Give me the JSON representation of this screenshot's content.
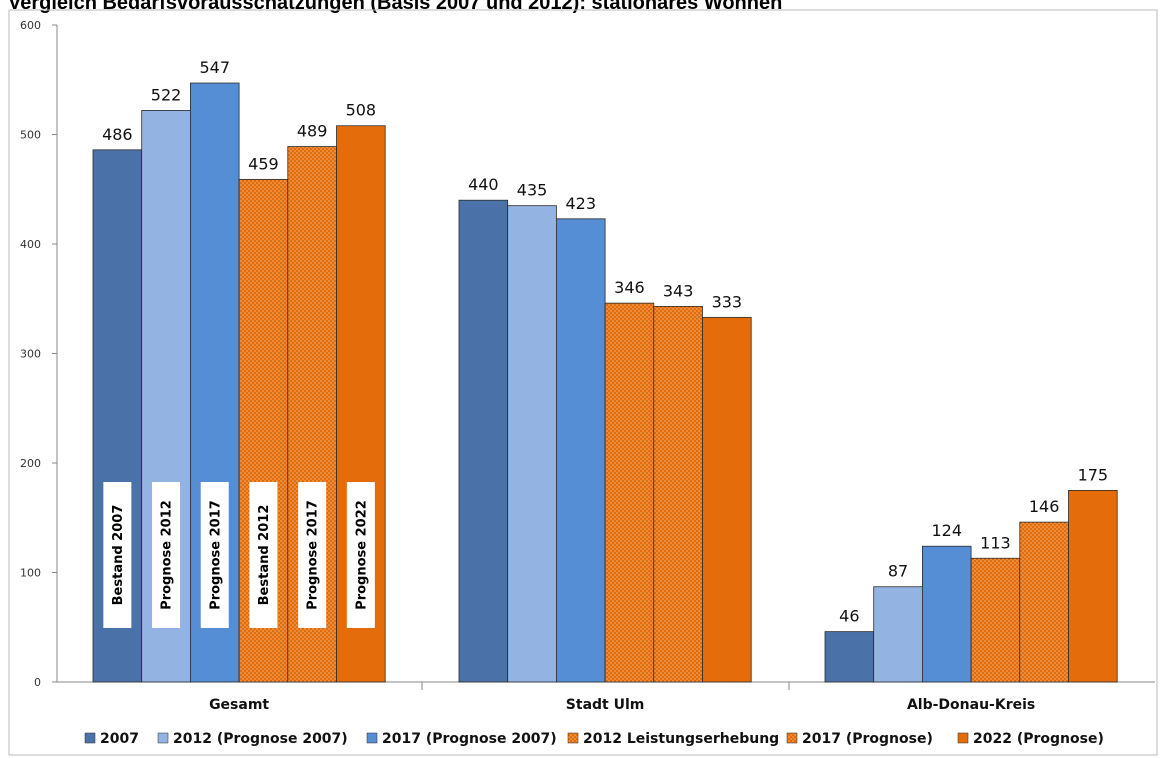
{
  "chart_data": {
    "type": "bar",
    "title": "Vergleich Bedarfsvorausschätzungen (Basis 2007 und 2012): stationäres Wohnen",
    "categories": [
      "Gesamt",
      "Stadt Ulm",
      "Alb-Donau-Kreis"
    ],
    "series": [
      {
        "name": "2007",
        "values": [
          486,
          440,
          46
        ],
        "color": "#4a72a8",
        "pattern": false
      },
      {
        "name": "2012 (Prognose 2007)",
        "values": [
          522,
          435,
          87
        ],
        "color": "#93b4e3",
        "pattern": false
      },
      {
        "name": "2017 (Prognose 2007)",
        "values": [
          547,
          423,
          124
        ],
        "color": "#558ed5",
        "pattern": false
      },
      {
        "name": "2012 Leistungserhebung",
        "values": [
          459,
          346,
          113
        ],
        "color": "#e36c0a",
        "pattern": true
      },
      {
        "name": "2017 (Prognose)",
        "values": [
          489,
          343,
          146
        ],
        "color": "#e36c0a",
        "pattern": true
      },
      {
        "name": "2022 (Prognose)",
        "values": [
          508,
          333,
          175
        ],
        "color": "#e46c0a",
        "pattern": false
      }
    ],
    "ylim": [
      0,
      600
    ],
    "yticks": [
      0,
      100,
      200,
      300,
      400,
      500,
      600
    ],
    "grid": false,
    "legend_position": "bottom",
    "bar_annotations": [
      "Bestand 2007",
      "Prognose  2012",
      "Prognose  2017",
      "Bestand 2012",
      "Prognose  2017",
      "Prognose  2022"
    ]
  }
}
